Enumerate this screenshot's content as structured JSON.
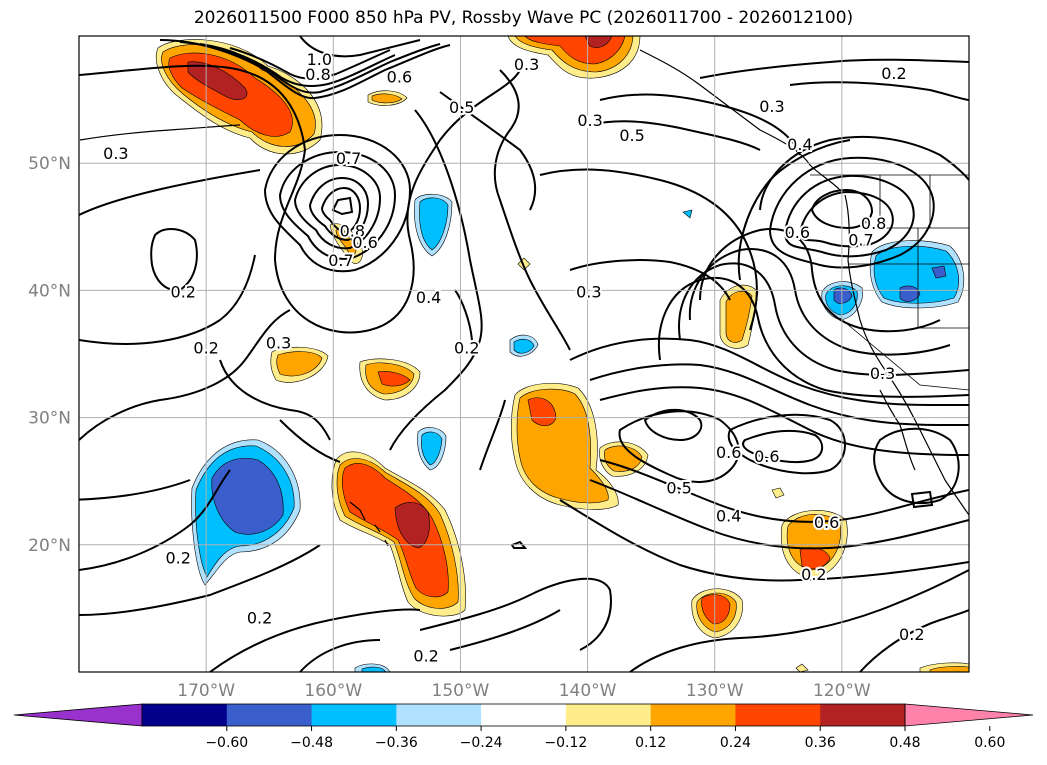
{
  "title": "2026011500 F000 850 hPa PV, Rossby Wave PC (2026011700 - 2026012100)",
  "lat_labels": [
    {
      "text": "50°N",
      "lat": 50
    },
    {
      "text": "40°N",
      "lat": 40
    },
    {
      "text": "30°N",
      "lat": 30
    },
    {
      "text": "20°N",
      "lat": 20
    }
  ],
  "lon_labels": [
    {
      "text": "170°W",
      "lon": -170
    },
    {
      "text": "160°W",
      "lon": -160
    },
    {
      "text": "150°W",
      "lon": -150
    },
    {
      "text": "140°W",
      "lon": -140
    },
    {
      "text": "130°W",
      "lon": -130
    },
    {
      "text": "120°W",
      "lon": -120
    }
  ],
  "colorbar": {
    "colors": [
      "#9932CC",
      "#00008B",
      "#3A5FCD",
      "#00BFFF",
      "#B0E2FF",
      "#FFFFFF",
      "#FFEC8B",
      "#FFA500",
      "#FF4500",
      "#B22222",
      "#FF82AB"
    ],
    "ticks": [
      "−0.60",
      "−0.48",
      "−0.36",
      "−0.24",
      "−0.12",
      "0.12",
      "0.24",
      "0.36",
      "0.48",
      "0.60"
    ]
  },
  "contour_labels": [
    {
      "text": "1.0",
      "lon": -161.1,
      "lat": 58.2
    },
    {
      "text": "0.8",
      "lon": -161.2,
      "lat": 57.0
    },
    {
      "text": "0.6",
      "lon": -154.8,
      "lat": 56.8
    },
    {
      "text": "0.5",
      "lon": -149.9,
      "lat": 54.4
    },
    {
      "text": "0.3",
      "lon": -144.8,
      "lat": 57.8
    },
    {
      "text": "0.3",
      "lon": -139.8,
      "lat": 53.4
    },
    {
      "text": "0.3",
      "lon": -125.5,
      "lat": 54.5
    },
    {
      "text": "0.2",
      "lon": -115.9,
      "lat": 57.1
    },
    {
      "text": "0.5",
      "lon": -136.5,
      "lat": 52.2
    },
    {
      "text": "0.4",
      "lon": -123.3,
      "lat": 51.5
    },
    {
      "text": "0.3",
      "lon": -177.1,
      "lat": 50.8
    },
    {
      "text": "0.7",
      "lon": -158.8,
      "lat": 50.4
    },
    {
      "text": "0.8",
      "lon": -158.5,
      "lat": 44.7
    },
    {
      "text": "0.6",
      "lon": -157.5,
      "lat": 43.8
    },
    {
      "text": "0.7",
      "lon": -159.4,
      "lat": 42.4
    },
    {
      "text": "0.6",
      "lon": -123.5,
      "lat": 44.6
    },
    {
      "text": "0.8",
      "lon": -117.5,
      "lat": 45.3
    },
    {
      "text": "0.7",
      "lon": -118.5,
      "lat": 44.0
    },
    {
      "text": "0.4",
      "lon": -152.5,
      "lat": 39.5
    },
    {
      "text": "0.2",
      "lon": -171.8,
      "lat": 39.9
    },
    {
      "text": "0.2",
      "lon": -170.0,
      "lat": 35.5
    },
    {
      "text": "0.3",
      "lon": -164.3,
      "lat": 35.9
    },
    {
      "text": "0.2",
      "lon": -149.5,
      "lat": 35.5
    },
    {
      "text": "0.3",
      "lon": -139.9,
      "lat": 39.9
    },
    {
      "text": "0.3",
      "lon": -116.8,
      "lat": 33.5
    },
    {
      "text": "0.6",
      "lon": -128.9,
      "lat": 27.3
    },
    {
      "text": "0.6",
      "lon": -125.9,
      "lat": 27.0
    },
    {
      "text": "0.5",
      "lon": -132.8,
      "lat": 24.5
    },
    {
      "text": "0.4",
      "lon": -128.9,
      "lat": 22.3
    },
    {
      "text": "0.6",
      "lon": -121.2,
      "lat": 21.8
    },
    {
      "text": "0.2",
      "lon": -122.2,
      "lat": 17.7
    },
    {
      "text": "0.2",
      "lon": -172.2,
      "lat": 19.0
    },
    {
      "text": "0.2",
      "lon": -165.8,
      "lat": 14.3
    },
    {
      "text": "0.2",
      "lon": -152.7,
      "lat": 11.3
    },
    {
      "text": "0.2",
      "lon": -114.5,
      "lat": 13.0
    }
  ]
}
